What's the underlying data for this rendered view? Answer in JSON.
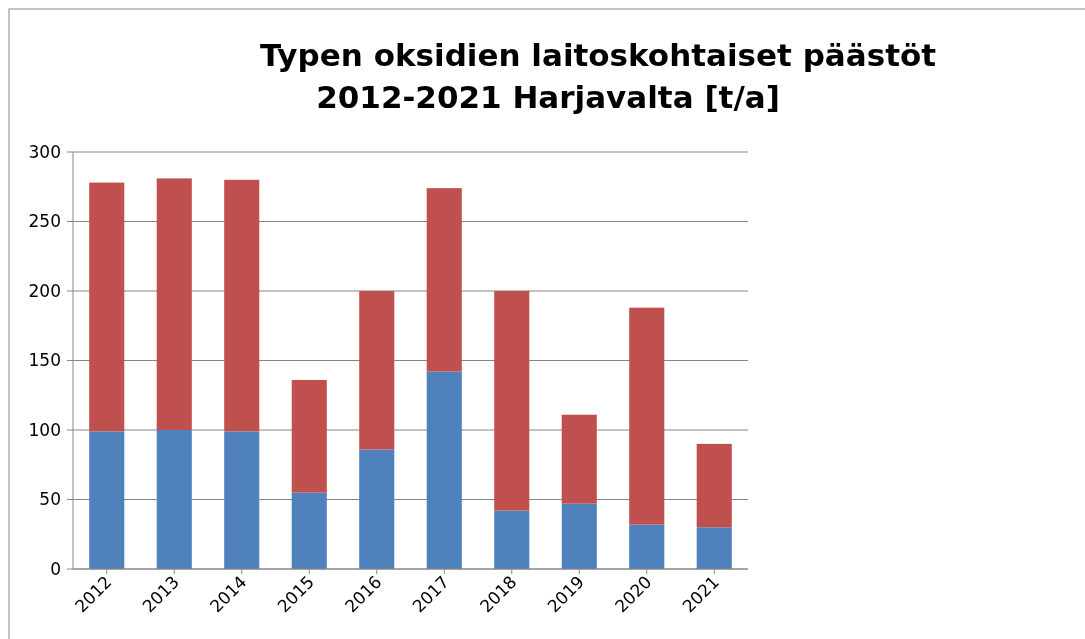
{
  "chart_data": {
    "type": "bar",
    "title": "Typen oksidien laitoskohtaiset päästöt\n2012-2021 Harjavalta [t/a]",
    "categories": [
      "2012",
      "2013",
      "2014",
      "2015",
      "2016",
      "2017",
      "2018",
      "2019",
      "2020",
      "2021"
    ],
    "stacked": true,
    "series": [
      {
        "color": "#4f81bd",
        "values": [
          99,
          100,
          99,
          55,
          86,
          142,
          42,
          47,
          32,
          30
        ]
      },
      {
        "color": "#c0504d",
        "values": [
          179,
          181,
          181,
          81,
          114,
          132,
          158,
          64,
          156,
          60
        ]
      }
    ],
    "ylim": [
      0,
      300
    ],
    "yticks": [
      0,
      50,
      100,
      150,
      200,
      250,
      300
    ],
    "grid": "y"
  }
}
